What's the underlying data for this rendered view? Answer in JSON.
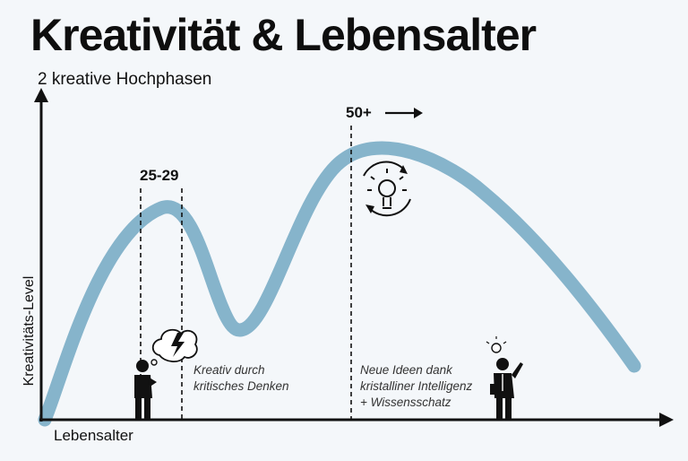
{
  "title": "Kreativität & Lebensalter",
  "subtitle": "2 kreative Hochphasen",
  "axes": {
    "y_label": "Kreativitäts-Level",
    "x_label": "Lebensalter"
  },
  "markers": {
    "early_peak_label": "25-29",
    "late_peak_label": "50+"
  },
  "notes": {
    "critical_line1": "Kreativ durch",
    "critical_line2": "kritisches Denken",
    "crystal_line1": "Neue Ideen dank",
    "crystal_line2": "kristalliner Intelligenz",
    "crystal_line3": "+ Wissensschatz"
  },
  "colors": {
    "curve": "#86b4cb",
    "axis": "#111111",
    "background": "#f4f7fa"
  },
  "icons": {
    "early_figure": "thinking-person-icon",
    "thought_bubble": "lightning-thought-bubble-icon",
    "idea_cycle": "lightbulb-cycle-icon",
    "late_figure": "businessman-idea-icon"
  }
}
